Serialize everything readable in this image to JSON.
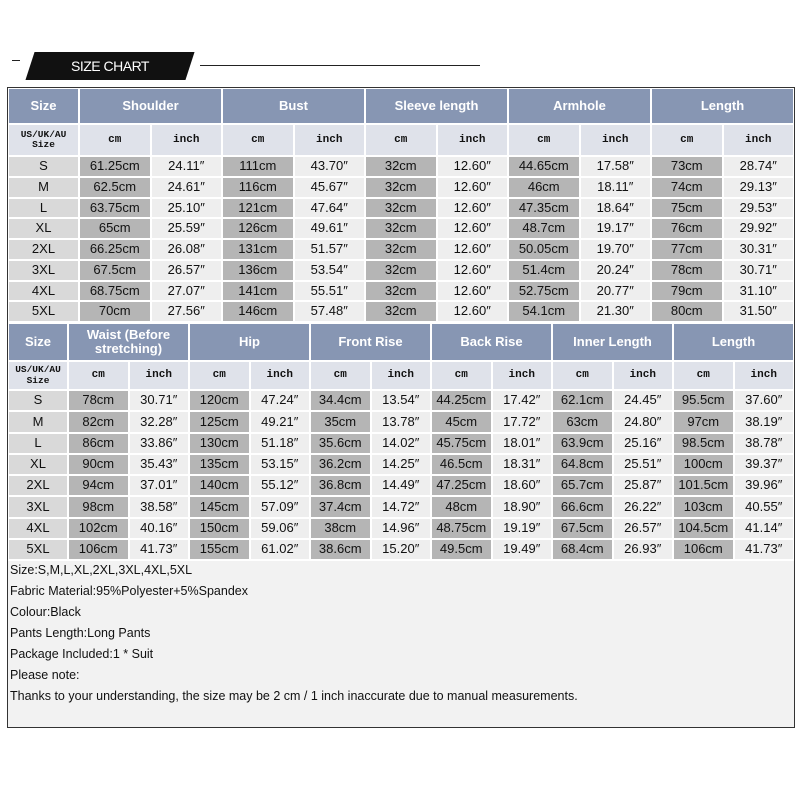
{
  "header": {
    "title": "SIZE CHART"
  },
  "tables": [
    {
      "headers": [
        "Size",
        "Shoulder",
        "Bust",
        "Sleeve length",
        "Armhole",
        "Length"
      ],
      "subheaders": [
        "US/UK/AU Size",
        "cm",
        "inch",
        "cm",
        "inch",
        "cm",
        "inch",
        "cm",
        "inch",
        "cm",
        "inch"
      ],
      "rows": [
        [
          "S",
          "61.25cm",
          "24.11″",
          "111cm",
          "43.70″",
          "32cm",
          "12.60″",
          "44.65cm",
          "17.58″",
          "73cm",
          "28.74″"
        ],
        [
          "M",
          "62.5cm",
          "24.61″",
          "116cm",
          "45.67″",
          "32cm",
          "12.60″",
          "46cm",
          "18.11″",
          "74cm",
          "29.13″"
        ],
        [
          "L",
          "63.75cm",
          "25.10″",
          "121cm",
          "47.64″",
          "32cm",
          "12.60″",
          "47.35cm",
          "18.64″",
          "75cm",
          "29.53″"
        ],
        [
          "XL",
          "65cm",
          "25.59″",
          "126cm",
          "49.61″",
          "32cm",
          "12.60″",
          "48.7cm",
          "19.17″",
          "76cm",
          "29.92″"
        ],
        [
          "2XL",
          "66.25cm",
          "26.08″",
          "131cm",
          "51.57″",
          "32cm",
          "12.60″",
          "50.05cm",
          "19.70″",
          "77cm",
          "30.31″"
        ],
        [
          "3XL",
          "67.5cm",
          "26.57″",
          "136cm",
          "53.54″",
          "32cm",
          "12.60″",
          "51.4cm",
          "20.24″",
          "78cm",
          "30.71″"
        ],
        [
          "4XL",
          "68.75cm",
          "27.07″",
          "141cm",
          "55.51″",
          "32cm",
          "12.60″",
          "52.75cm",
          "20.77″",
          "79cm",
          "31.10″"
        ],
        [
          "5XL",
          "70cm",
          "27.56″",
          "146cm",
          "57.48″",
          "32cm",
          "12.60″",
          "54.1cm",
          "21.30″",
          "80cm",
          "31.50″"
        ]
      ]
    },
    {
      "headers": [
        "Size",
        "Waist (Before stretching)",
        "Hip",
        "Front Rise",
        "Back Rise",
        "Inner Length",
        "Length"
      ],
      "subheaders": [
        "US/UK/AU Size",
        "cm",
        "inch",
        "cm",
        "inch",
        "cm",
        "inch",
        "cm",
        "inch",
        "cm",
        "inch",
        "cm",
        "inch"
      ],
      "rows": [
        [
          "S",
          "78cm",
          "30.71″",
          "120cm",
          "47.24″",
          "34.4cm",
          "13.54″",
          "44.25cm",
          "17.42″",
          "62.1cm",
          "24.45″",
          "95.5cm",
          "37.60″"
        ],
        [
          "M",
          "82cm",
          "32.28″",
          "125cm",
          "49.21″",
          "35cm",
          "13.78″",
          "45cm",
          "17.72″",
          "63cm",
          "24.80″",
          "97cm",
          "38.19″"
        ],
        [
          "L",
          "86cm",
          "33.86″",
          "130cm",
          "51.18″",
          "35.6cm",
          "14.02″",
          "45.75cm",
          "18.01″",
          "63.9cm",
          "25.16″",
          "98.5cm",
          "38.78″"
        ],
        [
          "XL",
          "90cm",
          "35.43″",
          "135cm",
          "53.15″",
          "36.2cm",
          "14.25″",
          "46.5cm",
          "18.31″",
          "64.8cm",
          "25.51″",
          "100cm",
          "39.37″"
        ],
        [
          "2XL",
          "94cm",
          "37.01″",
          "140cm",
          "55.12″",
          "36.8cm",
          "14.49″",
          "47.25cm",
          "18.60″",
          "65.7cm",
          "25.87″",
          "101.5cm",
          "39.96″"
        ],
        [
          "3XL",
          "98cm",
          "38.58″",
          "145cm",
          "57.09″",
          "37.4cm",
          "14.72″",
          "48cm",
          "18.90″",
          "66.6cm",
          "26.22″",
          "103cm",
          "40.55″"
        ],
        [
          "4XL",
          "102cm",
          "40.16″",
          "150cm",
          "59.06″",
          "38cm",
          "14.96″",
          "48.75cm",
          "19.19″",
          "67.5cm",
          "26.57″",
          "104.5cm",
          "41.14″"
        ],
        [
          "5XL",
          "106cm",
          "41.73″",
          "155cm",
          "61.02″",
          "38.6cm",
          "15.20″",
          "49.5cm",
          "19.49″",
          "68.4cm",
          "26.93″",
          "106cm",
          "41.73″"
        ]
      ]
    }
  ],
  "notes": [
    "Size:S,M,L,XL,2XL,3XL,4XL,5XL",
    "Fabric Material:95%Polyester+5%Spandex",
    "Colour:Black",
    "Pants Length:Long Pants",
    "Package Included:1 * Suit",
    "Please note:",
    "Thanks to your understanding, the size may be 2 cm / 1 inch inaccurate due to manual measurements."
  ]
}
